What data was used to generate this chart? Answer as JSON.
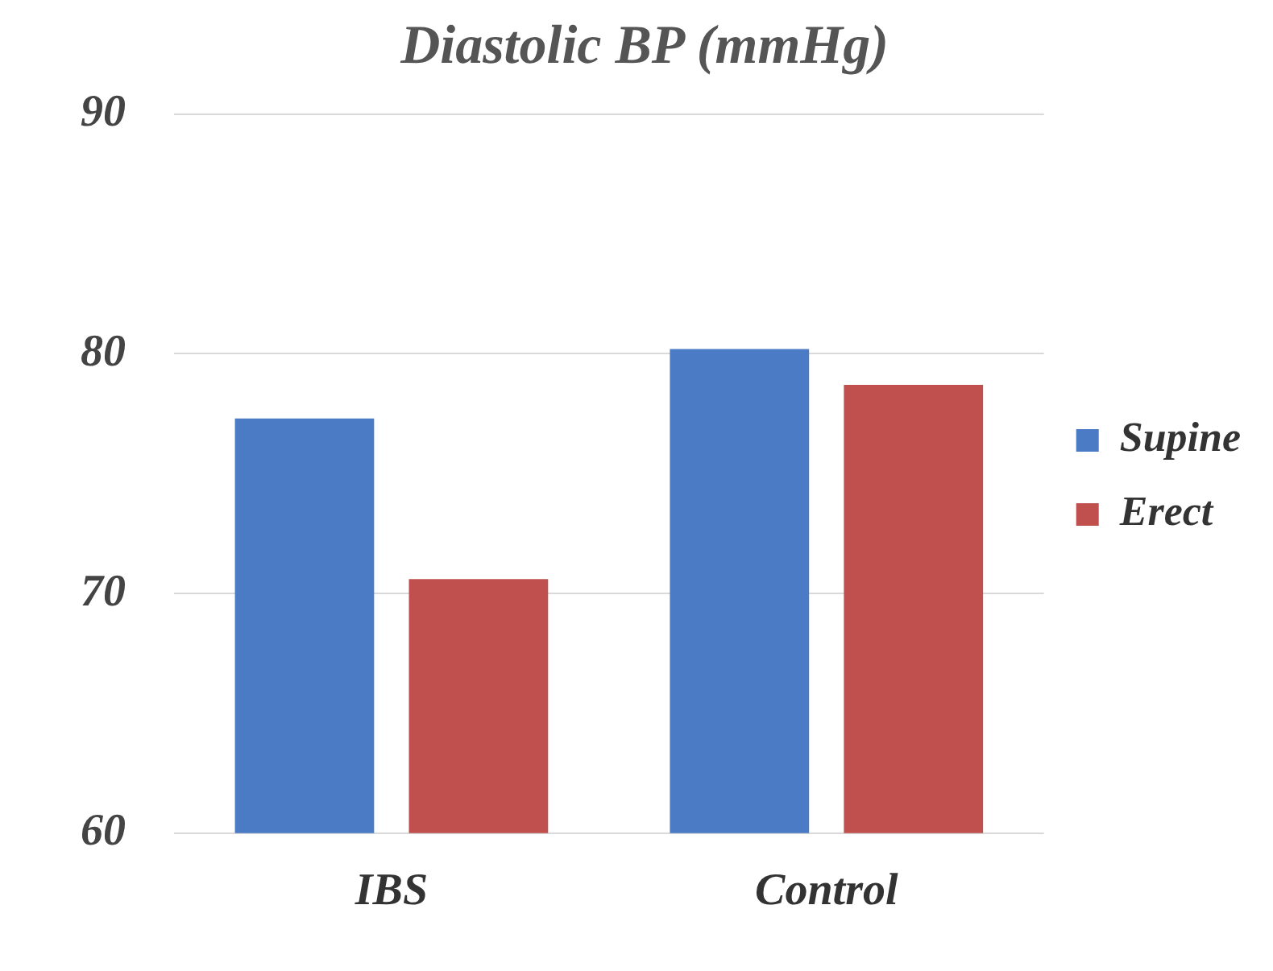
{
  "chart_data": {
    "type": "bar",
    "title": "Diastolic BP (mmHg)",
    "categories": [
      "IBS",
      "Control"
    ],
    "series": [
      {
        "name": "Supine",
        "color": "#4a7bc4",
        "values": [
          77.3,
          80.2
        ]
      },
      {
        "name": "Erect",
        "color": "#c0504d",
        "values": [
          70.6,
          78.7
        ]
      }
    ],
    "ylim": [
      60,
      90
    ],
    "yticks": [
      60,
      70,
      80,
      90
    ],
    "grid": "y",
    "legend": "right"
  }
}
